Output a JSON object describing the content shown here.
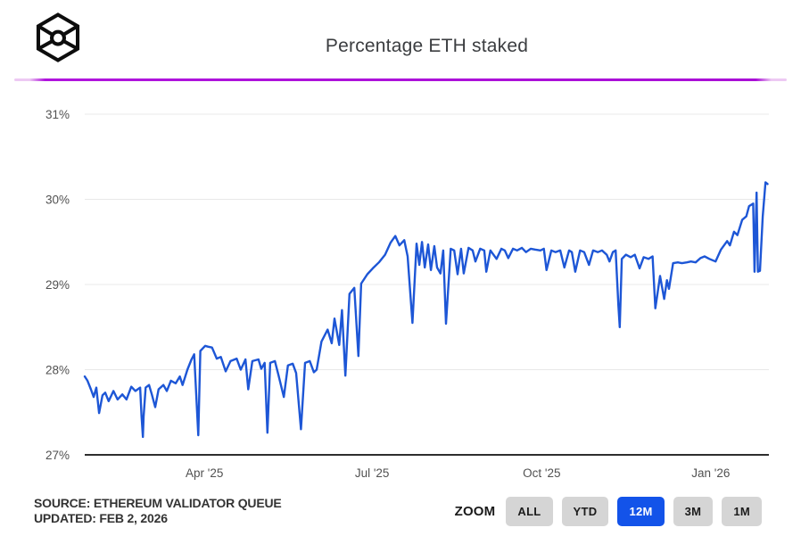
{
  "header": {
    "title": "Percentage ETH staked",
    "logo_icon": "wireframe-cube-with-lens"
  },
  "chart_data": {
    "type": "line",
    "title": "Percentage ETH staked",
    "xlabel": "",
    "ylabel": "",
    "y_unit": "%",
    "ylim": [
      27,
      31
    ],
    "grid": true,
    "legend": "none",
    "line_color": "#1d56d6",
    "y_ticks": [
      {
        "value": 27,
        "label": "27%"
      },
      {
        "value": 28,
        "label": "28%"
      },
      {
        "value": 29,
        "label": "29%"
      },
      {
        "value": 30,
        "label": "30%"
      },
      {
        "value": 31,
        "label": "31%"
      }
    ],
    "x_ticks": [
      {
        "pos": 0.175,
        "label": "Apr '25"
      },
      {
        "pos": 0.42,
        "label": "Jul '25"
      },
      {
        "pos": 0.668,
        "label": "Oct '25"
      },
      {
        "pos": 0.915,
        "label": "Jan '26"
      }
    ],
    "series": [
      {
        "name": "Percentage ETH staked",
        "x_format": "fraction-of-range (Feb 2025 to Feb 2026)",
        "points": [
          [
            0.0,
            27.92
          ],
          [
            0.004,
            27.87
          ],
          [
            0.009,
            27.77
          ],
          [
            0.013,
            27.68
          ],
          [
            0.017,
            27.79
          ],
          [
            0.021,
            27.49
          ],
          [
            0.026,
            27.7
          ],
          [
            0.03,
            27.73
          ],
          [
            0.035,
            27.63
          ],
          [
            0.042,
            27.75
          ],
          [
            0.048,
            27.65
          ],
          [
            0.055,
            27.71
          ],
          [
            0.061,
            27.65
          ],
          [
            0.068,
            27.8
          ],
          [
            0.074,
            27.75
          ],
          [
            0.081,
            27.79
          ],
          [
            0.083,
            27.45
          ],
          [
            0.085,
            27.21
          ],
          [
            0.086,
            27.45
          ],
          [
            0.089,
            27.79
          ],
          [
            0.094,
            27.82
          ],
          [
            0.098,
            27.71
          ],
          [
            0.103,
            27.56
          ],
          [
            0.108,
            27.77
          ],
          [
            0.115,
            27.82
          ],
          [
            0.12,
            27.75
          ],
          [
            0.126,
            27.87
          ],
          [
            0.133,
            27.84
          ],
          [
            0.139,
            27.92
          ],
          [
            0.143,
            27.82
          ],
          [
            0.15,
            28.0
          ],
          [
            0.156,
            28.12
          ],
          [
            0.16,
            28.18
          ],
          [
            0.166,
            27.23
          ],
          [
            0.169,
            28.22
          ],
          [
            0.176,
            28.28
          ],
          [
            0.18,
            28.27
          ],
          [
            0.186,
            28.26
          ],
          [
            0.193,
            28.13
          ],
          [
            0.199,
            28.15
          ],
          [
            0.206,
            27.98
          ],
          [
            0.213,
            28.1
          ],
          [
            0.222,
            28.13
          ],
          [
            0.228,
            28.0
          ],
          [
            0.235,
            28.12
          ],
          [
            0.239,
            27.77
          ],
          [
            0.245,
            28.1
          ],
          [
            0.254,
            28.12
          ],
          [
            0.258,
            28.01
          ],
          [
            0.263,
            28.08
          ],
          [
            0.267,
            27.26
          ],
          [
            0.271,
            28.08
          ],
          [
            0.278,
            28.1
          ],
          [
            0.283,
            27.94
          ],
          [
            0.291,
            27.68
          ],
          [
            0.297,
            28.05
          ],
          [
            0.304,
            28.07
          ],
          [
            0.309,
            27.96
          ],
          [
            0.316,
            27.3
          ],
          [
            0.322,
            28.08
          ],
          [
            0.329,
            28.1
          ],
          [
            0.335,
            27.97
          ],
          [
            0.339,
            28.0
          ],
          [
            0.346,
            28.33
          ],
          [
            0.355,
            28.47
          ],
          [
            0.361,
            28.31
          ],
          [
            0.365,
            28.6
          ],
          [
            0.372,
            28.29
          ],
          [
            0.376,
            28.7
          ],
          [
            0.381,
            27.93
          ],
          [
            0.387,
            28.89
          ],
          [
            0.394,
            28.96
          ],
          [
            0.4,
            28.16
          ],
          [
            0.404,
            29.01
          ],
          [
            0.413,
            29.12
          ],
          [
            0.421,
            29.19
          ],
          [
            0.43,
            29.26
          ],
          [
            0.439,
            29.35
          ],
          [
            0.447,
            29.49
          ],
          [
            0.454,
            29.57
          ],
          [
            0.46,
            29.46
          ],
          [
            0.467,
            29.52
          ],
          [
            0.472,
            29.33
          ],
          [
            0.479,
            28.55
          ],
          [
            0.485,
            29.48
          ],
          [
            0.489,
            29.23
          ],
          [
            0.493,
            29.5
          ],
          [
            0.497,
            29.2
          ],
          [
            0.502,
            29.47
          ],
          [
            0.506,
            29.17
          ],
          [
            0.511,
            29.45
          ],
          [
            0.515,
            29.2
          ],
          [
            0.52,
            29.13
          ],
          [
            0.524,
            29.4
          ],
          [
            0.528,
            28.54
          ],
          [
            0.535,
            29.42
          ],
          [
            0.54,
            29.4
          ],
          [
            0.545,
            29.12
          ],
          [
            0.55,
            29.42
          ],
          [
            0.554,
            29.13
          ],
          [
            0.561,
            29.43
          ],
          [
            0.567,
            29.4
          ],
          [
            0.571,
            29.27
          ],
          [
            0.578,
            29.42
          ],
          [
            0.584,
            29.4
          ],
          [
            0.587,
            29.15
          ],
          [
            0.593,
            29.4
          ],
          [
            0.602,
            29.3
          ],
          [
            0.609,
            29.42
          ],
          [
            0.614,
            29.4
          ],
          [
            0.619,
            29.31
          ],
          [
            0.626,
            29.42
          ],
          [
            0.632,
            29.4
          ],
          [
            0.639,
            29.43
          ],
          [
            0.645,
            29.38
          ],
          [
            0.652,
            29.42
          ],
          [
            0.658,
            29.41
          ],
          [
            0.666,
            29.4
          ],
          [
            0.671,
            29.42
          ],
          [
            0.675,
            29.17
          ],
          [
            0.682,
            29.4
          ],
          [
            0.688,
            29.38
          ],
          [
            0.695,
            29.4
          ],
          [
            0.701,
            29.2
          ],
          [
            0.708,
            29.4
          ],
          [
            0.712,
            29.38
          ],
          [
            0.717,
            29.15
          ],
          [
            0.724,
            29.4
          ],
          [
            0.73,
            29.38
          ],
          [
            0.737,
            29.23
          ],
          [
            0.743,
            29.4
          ],
          [
            0.75,
            29.38
          ],
          [
            0.756,
            29.4
          ],
          [
            0.763,
            29.35
          ],
          [
            0.767,
            29.27
          ],
          [
            0.772,
            29.38
          ],
          [
            0.776,
            29.4
          ],
          [
            0.78,
            28.75
          ],
          [
            0.782,
            28.5
          ],
          [
            0.785,
            29.3
          ],
          [
            0.791,
            29.35
          ],
          [
            0.798,
            29.32
          ],
          [
            0.804,
            29.35
          ],
          [
            0.811,
            29.19
          ],
          [
            0.817,
            29.32
          ],
          [
            0.824,
            29.3
          ],
          [
            0.83,
            29.33
          ],
          [
            0.834,
            28.72
          ],
          [
            0.841,
            29.1
          ],
          [
            0.847,
            28.83
          ],
          [
            0.851,
            29.05
          ],
          [
            0.854,
            28.95
          ],
          [
            0.86,
            29.25
          ],
          [
            0.867,
            29.26
          ],
          [
            0.873,
            29.25
          ],
          [
            0.88,
            29.26
          ],
          [
            0.886,
            29.27
          ],
          [
            0.893,
            29.26
          ],
          [
            0.9,
            29.31
          ],
          [
            0.906,
            29.33
          ],
          [
            0.913,
            29.3
          ],
          [
            0.922,
            29.27
          ],
          [
            0.93,
            29.41
          ],
          [
            0.939,
            29.51
          ],
          [
            0.943,
            29.46
          ],
          [
            0.949,
            29.62
          ],
          [
            0.954,
            29.58
          ],
          [
            0.961,
            29.76
          ],
          [
            0.967,
            29.8
          ],
          [
            0.971,
            29.92
          ],
          [
            0.977,
            29.95
          ],
          [
            0.979,
            29.15
          ],
          [
            0.982,
            30.08
          ],
          [
            0.984,
            29.15
          ],
          [
            0.987,
            29.16
          ],
          [
            0.991,
            29.8
          ],
          [
            0.995,
            30.2
          ],
          [
            0.998,
            30.18
          ]
        ]
      }
    ]
  },
  "footer": {
    "source_line1": "SOURCE: ETHEREUM VALIDATOR QUEUE",
    "source_line2": "UPDATED: FEB 2, 2026",
    "zoom_label": "ZOOM",
    "zoom_buttons": [
      {
        "label": "ALL",
        "active": false
      },
      {
        "label": "YTD",
        "active": false
      },
      {
        "label": "12M",
        "active": true
      },
      {
        "label": "3M",
        "active": false
      },
      {
        "label": "1M",
        "active": false
      }
    ]
  },
  "theme": {
    "line_blue": "#1d56d6",
    "active_button_blue": "#1353e9",
    "button_gray": "#d5d5d5",
    "divider_purple": "#a90fd6",
    "grid_gray": "#e8e8e8",
    "axis_dark": "#2e2e2e"
  }
}
